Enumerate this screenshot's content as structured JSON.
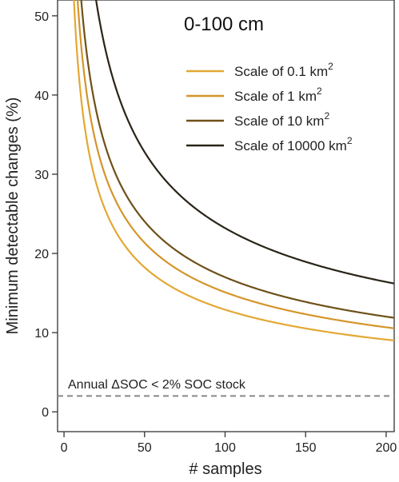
{
  "chart_data": {
    "type": "line",
    "title": "0-100 cm",
    "xlabel": "# samples",
    "ylabel": "Minimum detectable changes (%)",
    "xlim": [
      -4,
      205
    ],
    "ylim": [
      -2.5,
      52
    ],
    "xticks": [
      0,
      50,
      100,
      150,
      200
    ],
    "xtick_labels": [
      "0",
      "50",
      "100",
      "150",
      "200"
    ],
    "yticks": [
      0,
      10,
      20,
      30,
      40,
      50
    ],
    "ytick_labels": [
      "0",
      "10",
      "20",
      "30",
      "40",
      "50"
    ],
    "grid": false,
    "legend_position": "top-right",
    "series": [
      {
        "name": "Scale of 0.1 km",
        "name_sup": "2",
        "color": "#e3a834",
        "k": 129
      },
      {
        "name": "Scale of 1 km",
        "name_sup": "2",
        "color": "#d4952a",
        "k": 151
      },
      {
        "name": "Scale of 10 km",
        "name_sup": "2",
        "color": "#6e5018",
        "k": 170
      },
      {
        "name": "Scale of 10000 km",
        "name_sup": "2",
        "color": "#2a2418",
        "k": 232
      }
    ],
    "series_formula": "y = k / sqrt(n)",
    "reference_line": {
      "y": 2,
      "label": "Annual ΔSOC < 2% SOC stock",
      "color": "#888888"
    }
  }
}
